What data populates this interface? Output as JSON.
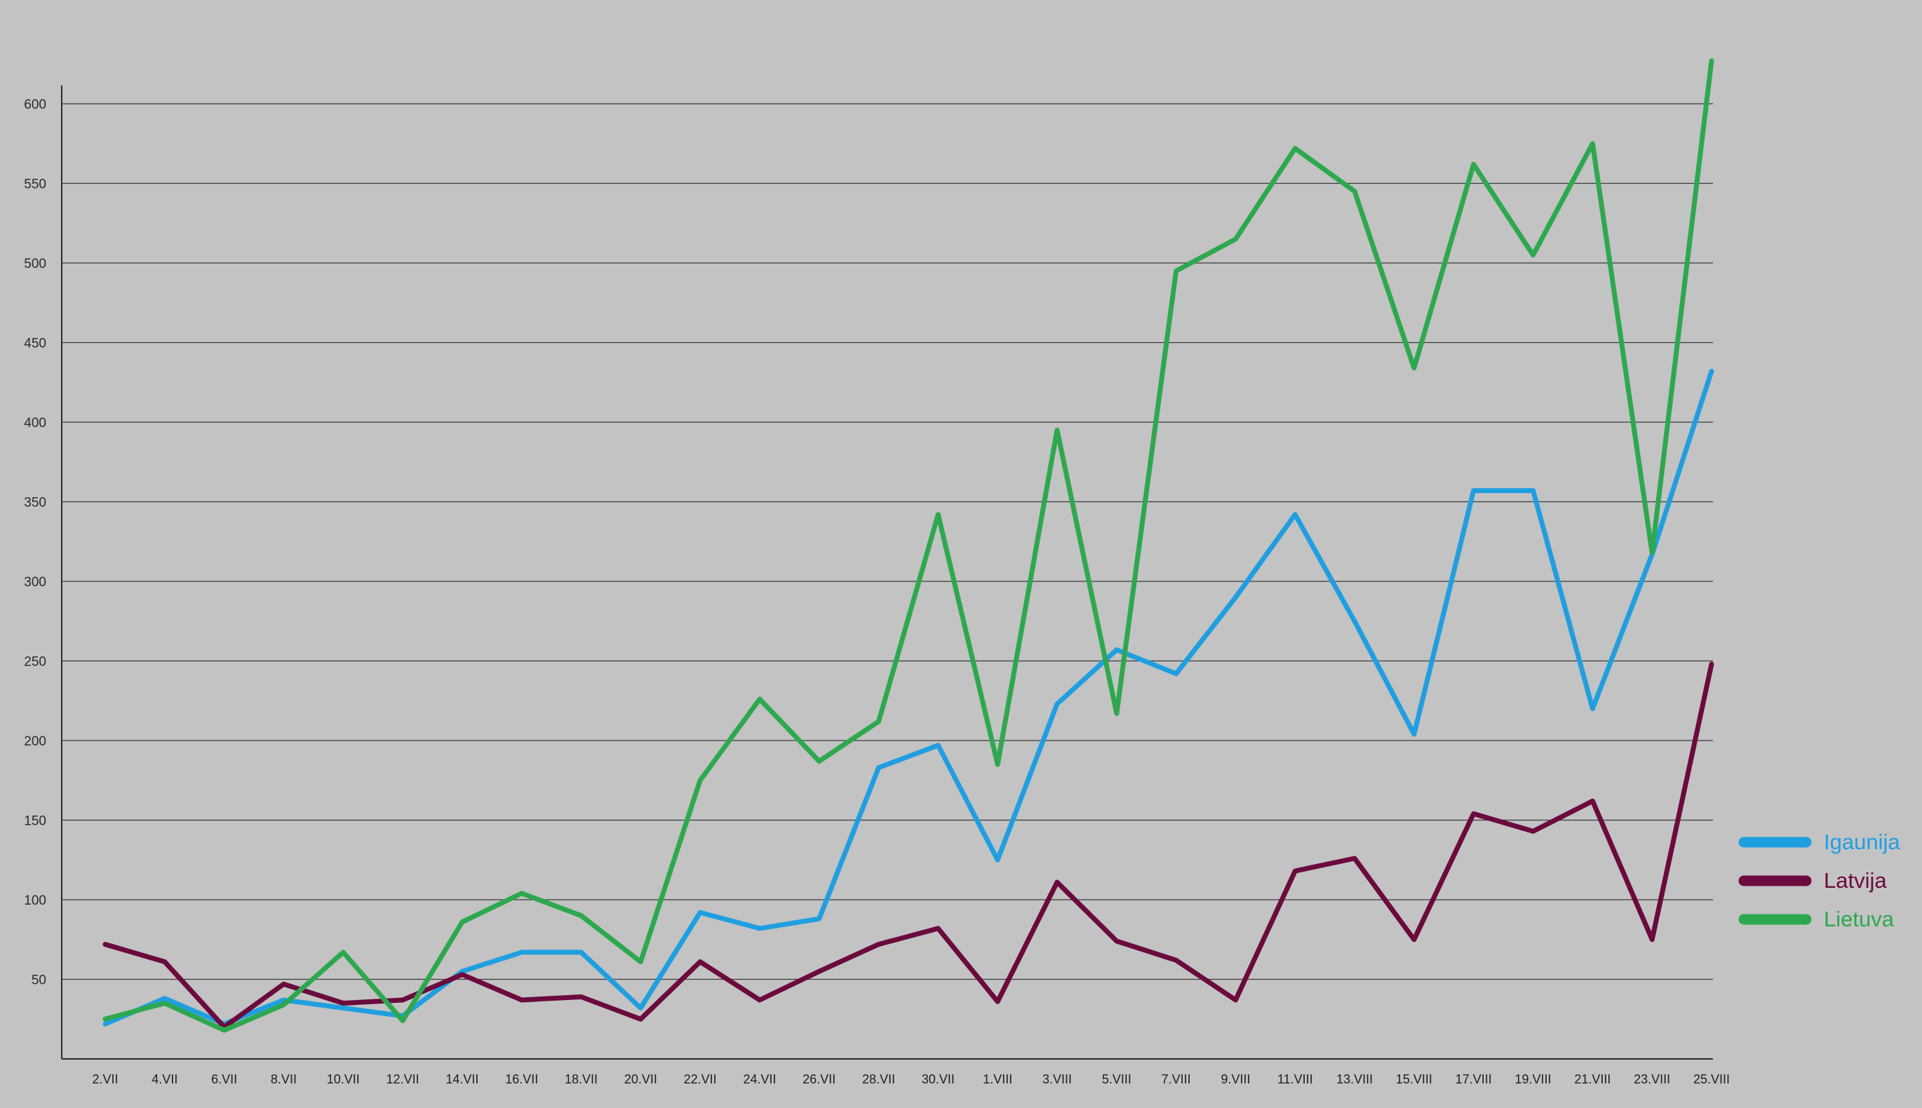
{
  "chart_data": {
    "type": "line",
    "title": "",
    "xlabel": "",
    "ylabel": "",
    "ylim": [
      0,
      650
    ],
    "grid": true,
    "legend_position": "right",
    "y_ticks": [
      50,
      100,
      150,
      200,
      250,
      300,
      350,
      400,
      450,
      500,
      550,
      600
    ],
    "categories": [
      "2.VII",
      "4.VII",
      "6.VII",
      "8.VII",
      "10.VII",
      "12.VII",
      "14.VII",
      "16.VII",
      "18.VII",
      "20.VII",
      "22.VII",
      "24.VII",
      "26.VII",
      "28.VII",
      "30.VII",
      "1.VIII",
      "3.VIII",
      "5.VIII",
      "7.VIII",
      "9.VIII",
      "11.VIII",
      "13.VIII",
      "15.VIII",
      "17.VIII",
      "19.VIII",
      "21.VIII",
      "23.VIII",
      "25.VIII"
    ],
    "series": [
      {
        "name": "Igaunija",
        "color": "#1f9fe0",
        "values": [
          22,
          38,
          22,
          37,
          32,
          27,
          55,
          67,
          67,
          32,
          92,
          82,
          88,
          183,
          197,
          125,
          223,
          257,
          242,
          290,
          342,
          275,
          204,
          357,
          357,
          220,
          317,
          432
        ]
      },
      {
        "name": "Latvija",
        "color": "#6b0a3e",
        "values": [
          72,
          61,
          20,
          47,
          35,
          37,
          53,
          37,
          39,
          25,
          61,
          37,
          55,
          72,
          82,
          36,
          111,
          74,
          62,
          37,
          118,
          126,
          75,
          154,
          143,
          162,
          75,
          248
        ]
      },
      {
        "name": "Lietuva",
        "color": "#2ea84f",
        "values": [
          25,
          35,
          18,
          34,
          67,
          24,
          86,
          104,
          90,
          61,
          175,
          226,
          187,
          212,
          342,
          185,
          395,
          217,
          495,
          515,
          572,
          545,
          434,
          562,
          505,
          575,
          318,
          627
        ]
      }
    ]
  }
}
